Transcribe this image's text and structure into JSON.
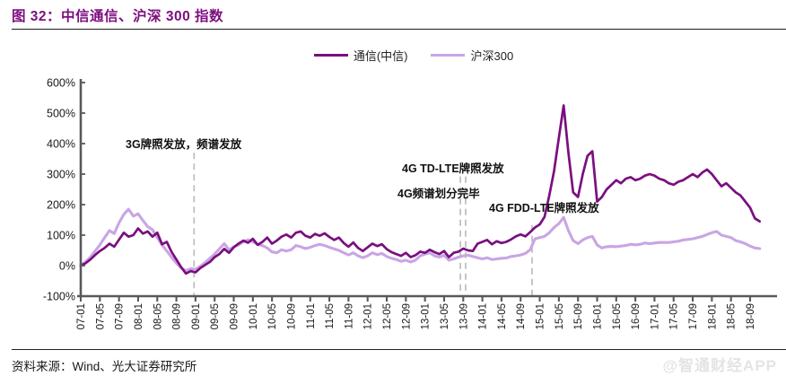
{
  "header": {
    "title": "图 32：中信通信、沪深 300 指数"
  },
  "legend": {
    "items": [
      {
        "label": "通信(中信)",
        "color": "#7a0f7e"
      },
      {
        "label": "沪深300",
        "color": "#c9a5e4"
      }
    ]
  },
  "footer": {
    "source": "资料来源：Wind、光大证券研究所",
    "watermark": "@智通财经APP"
  },
  "chart_data": {
    "type": "line",
    "title": "中信通信、沪深300 指数",
    "ylim": [
      -100,
      600
    ],
    "grid": false,
    "legend_position": "top-center",
    "y_tick_labels": [
      "600%",
      "500%",
      "400%",
      "300%",
      "200%",
      "100%",
      "0%",
      "-100%"
    ],
    "x_label_step": 4,
    "x_labels": [
      "07-01",
      "07-05",
      "07-09",
      "08-01",
      "08-05",
      "08-09",
      "09-01",
      "09-05",
      "09-09",
      "10-01",
      "10-05",
      "10-09",
      "11-01",
      "11-05",
      "11-09",
      "12-01",
      "12-05",
      "12-09",
      "13-01",
      "13-05",
      "13-09",
      "14-01",
      "14-05",
      "14-09",
      "15-01",
      "15-05",
      "15-09",
      "16-01",
      "16-05",
      "16-09",
      "17-01",
      "17-05",
      "17-09",
      "18-01",
      "18-05",
      "18-09"
    ],
    "series": [
      {
        "name": "通信(中信)",
        "color": "#7a0f7e",
        "width": 2.7,
        "values": [
          0,
          8,
          20,
          35,
          48,
          58,
          72,
          62,
          85,
          108,
          95,
          100,
          122,
          105,
          112,
          95,
          108,
          70,
          78,
          45,
          20,
          -5,
          -26,
          -18,
          -22,
          -8,
          2,
          12,
          28,
          38,
          55,
          42,
          60,
          72,
          82,
          75,
          88,
          68,
          78,
          92,
          72,
          82,
          95,
          102,
          92,
          108,
          112,
          98,
          92,
          104,
          98,
          106,
          94,
          84,
          92,
          74,
          62,
          76,
          58,
          48,
          60,
          72,
          64,
          70,
          54,
          44,
          38,
          32,
          42,
          28,
          34,
          46,
          42,
          52,
          44,
          38,
          48,
          28,
          42,
          46,
          56,
          50,
          48,
          72,
          78,
          84,
          70,
          80,
          74,
          78,
          86,
          96,
          102,
          96,
          110,
          125,
          135,
          160,
          230,
          310,
          420,
          525,
          370,
          240,
          225,
          300,
          360,
          375,
          210,
          225,
          250,
          265,
          280,
          270,
          285,
          290,
          280,
          285,
          295,
          300,
          295,
          285,
          280,
          270,
          265,
          275,
          280,
          290,
          300,
          290,
          305,
          315,
          300,
          280,
          260,
          270,
          255,
          240,
          230,
          210,
          190,
          155,
          145
        ]
      },
      {
        "name": "沪深300",
        "color": "#c9a5e4",
        "width": 3.1,
        "values": [
          0,
          12,
          28,
          48,
          68,
          92,
          115,
          105,
          140,
          168,
          185,
          162,
          170,
          148,
          128,
          118,
          92,
          68,
          48,
          28,
          8,
          -8,
          -16,
          -10,
          -12,
          -2,
          10,
          24,
          38,
          55,
          72,
          52,
          62,
          68,
          78,
          85,
          78,
          70,
          66,
          58,
          45,
          42,
          52,
          48,
          52,
          66,
          62,
          56,
          60,
          66,
          70,
          66,
          60,
          55,
          50,
          42,
          35,
          42,
          32,
          26,
          32,
          42,
          36,
          40,
          30,
          24,
          20,
          14,
          18,
          12,
          18,
          32,
          38,
          42,
          32,
          28,
          34,
          18,
          22,
          28,
          32,
          34,
          30,
          26,
          22,
          26,
          20,
          22,
          24,
          25,
          30,
          32,
          35,
          40,
          52,
          88,
          92,
          96,
          108,
          125,
          138,
          158,
          115,
          82,
          72,
          84,
          92,
          96,
          68,
          58,
          62,
          63,
          62,
          64,
          66,
          70,
          68,
          70,
          74,
          72,
          74,
          76,
          76,
          76,
          78,
          80,
          84,
          86,
          88,
          92,
          96,
          102,
          108,
          112,
          100,
          96,
          92,
          82,
          78,
          72,
          64,
          58,
          56
        ]
      }
    ],
    "event_lines": [
      {
        "month": 23.7,
        "top_value": 370
      },
      {
        "month": 79.4,
        "top_value": 292
      },
      {
        "month": 80.5,
        "top_value": 292
      },
      {
        "month": 94.4,
        "top_value": 133
      }
    ],
    "annotations": [
      {
        "text": "3G牌照发放，频谱发放"
      },
      {
        "text": "4G TD-LTE牌照发放"
      },
      {
        "text": "4G频谱划分完毕"
      },
      {
        "text": "4G FDD-LTE牌照发放"
      }
    ]
  }
}
